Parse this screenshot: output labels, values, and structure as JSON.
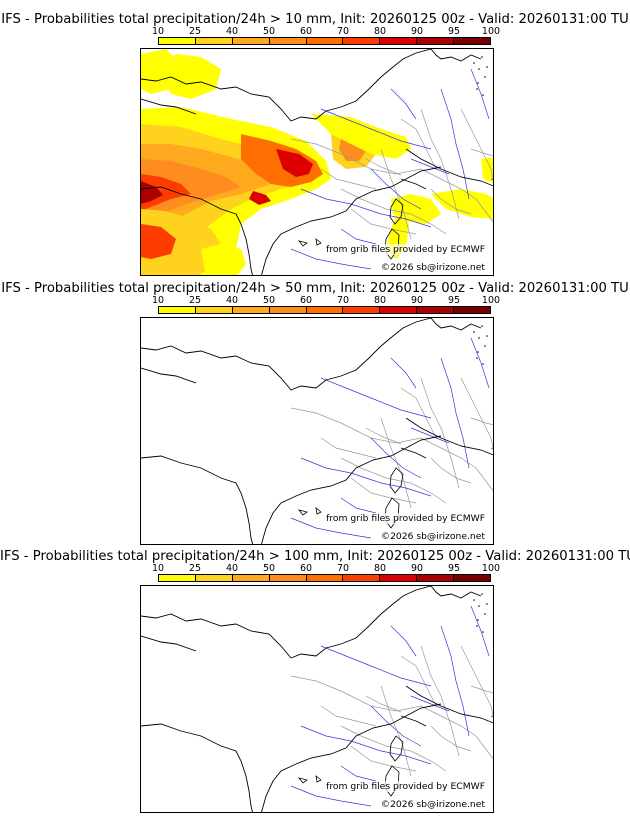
{
  "colorbar": {
    "ticks": [
      "10",
      "25",
      "40",
      "50",
      "60",
      "70",
      "80",
      "90",
      "95",
      "100"
    ],
    "colors": [
      "#ffff00",
      "#ffd21e",
      "#ffaa1e",
      "#ff8c1e",
      "#ff6e00",
      "#ff3c00",
      "#dc0000",
      "#aa0000",
      "#780000"
    ]
  },
  "panels": [
    {
      "title": "IFS - Probabilities total precipitation/24h > 10 mm, Init: 20260125 00z - Valid: 20260131:00 TU",
      "source_credit": "from grib files provided by ECMWF",
      "copyright": "©2026 sb@irizone.net"
    },
    {
      "title": "IFS - Probabilities total precipitation/24h > 50 mm, Init: 20260125 00z - Valid: 20260131:00 TU",
      "source_credit": "from grib files provided by ECMWF",
      "copyright": "©2026 sb@irizone.net"
    },
    {
      "title": "IFS - Probabilities total precipitation/24h > 100 mm, Init: 20260125 00z - Valid: 20260131:00 TU",
      "source_credit": "from grib files provided by ECMWF",
      "copyright": "©2026 sb@irizone.net"
    }
  ]
}
